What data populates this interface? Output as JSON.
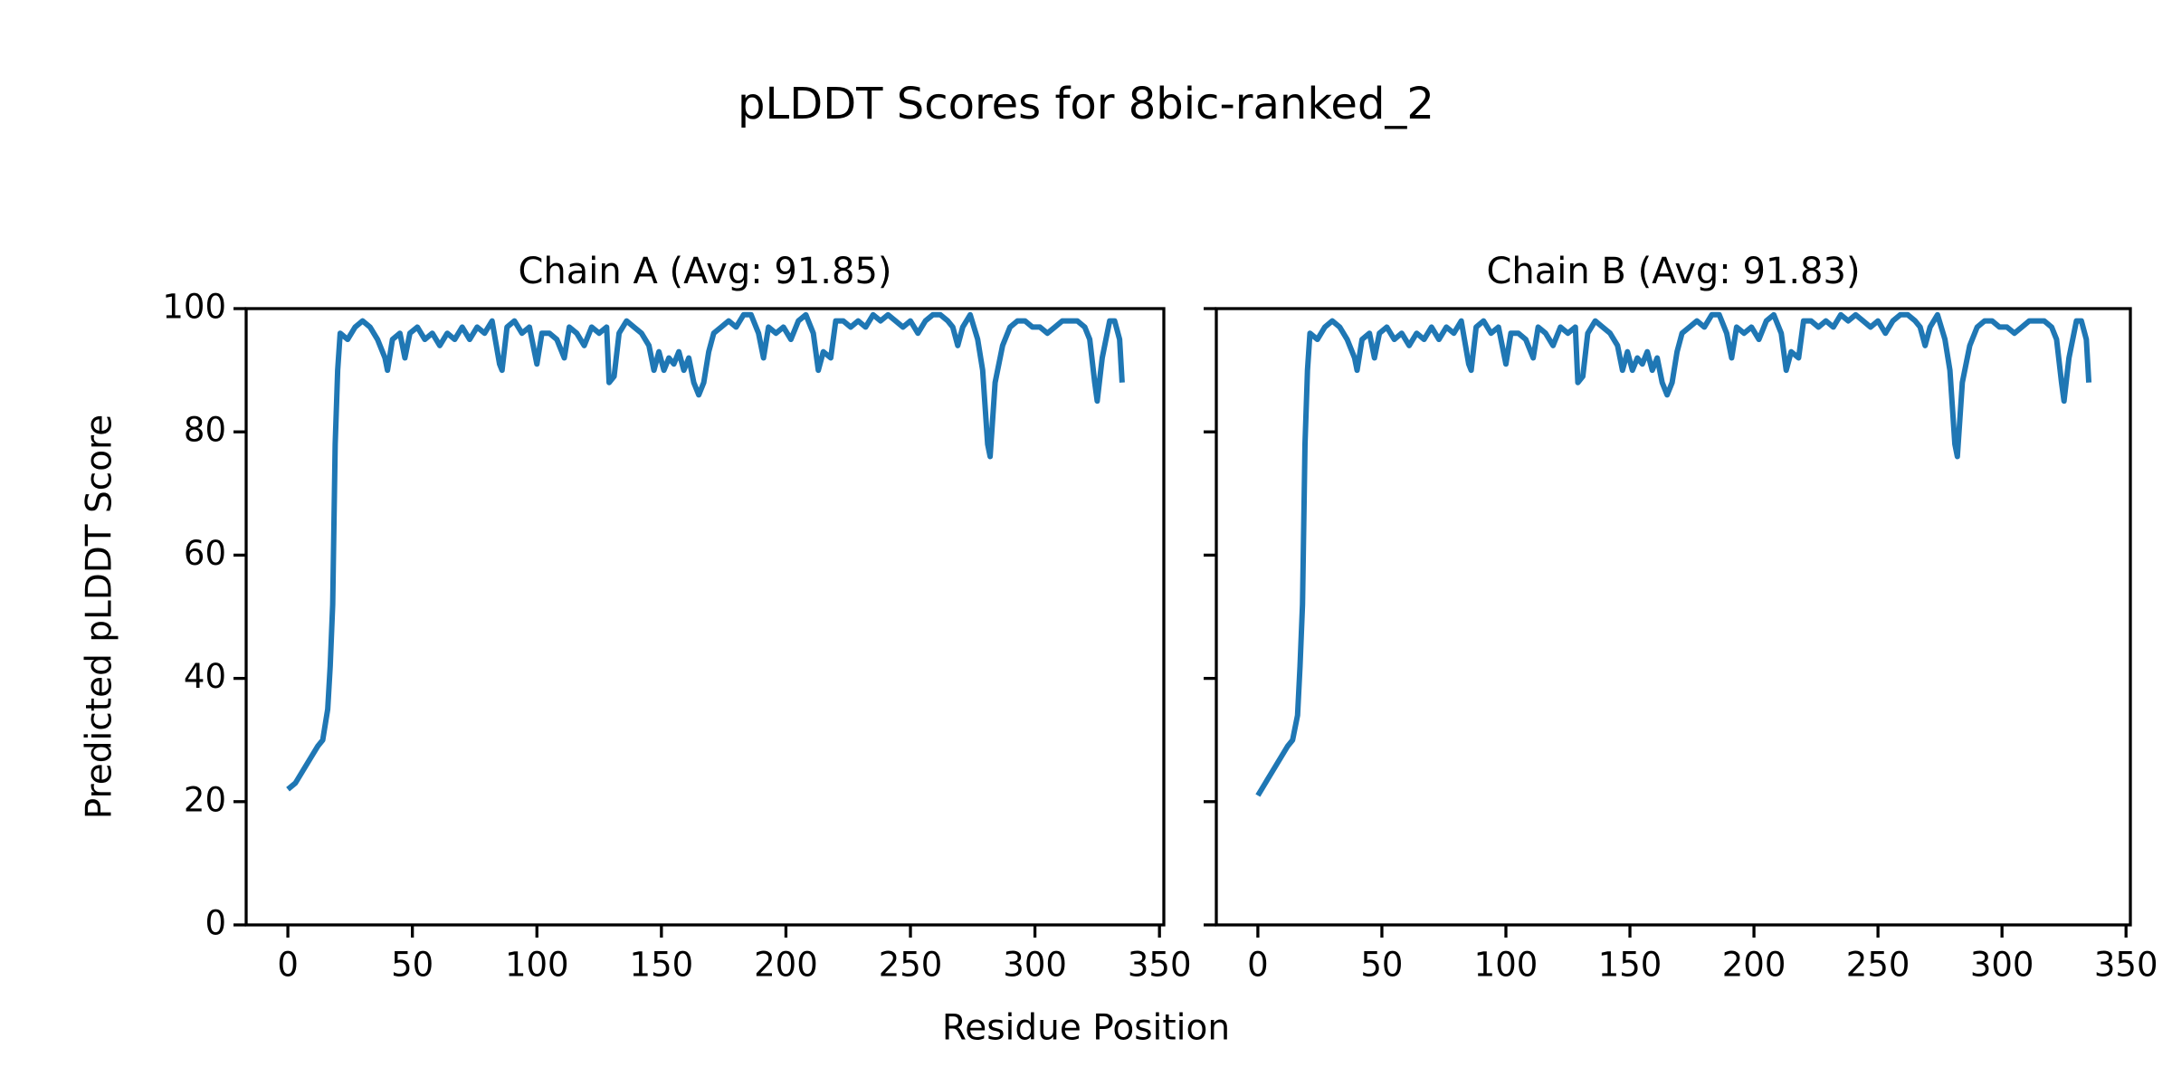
{
  "title": "pLDDT Scores for 8bic-ranked_2",
  "xlabel": "Residue Position",
  "chart_data": [
    {
      "type": "line",
      "title": "Chain A (Avg: 91.85)",
      "ylabel": "Predicted pLDDT Score",
      "xlim": [
        -16.75,
        351.75
      ],
      "ylim": [
        0,
        100
      ],
      "xticks": [
        0,
        50,
        100,
        150,
        200,
        250,
        300,
        350
      ],
      "yticks": [
        0,
        20,
        40,
        60,
        80,
        100
      ],
      "ytick_labels": true,
      "series": [
        {
          "color": "#1f77b4",
          "x": [
            0,
            3,
            6,
            9,
            12,
            14,
            16,
            17,
            18,
            19,
            20,
            21,
            24,
            27,
            30,
            33,
            36,
            39,
            40,
            42,
            45,
            47,
            49,
            52,
            55,
            58,
            61,
            64,
            67,
            70,
            73,
            76,
            79,
            82,
            85,
            86,
            88,
            91,
            94,
            97,
            100,
            102,
            105,
            108,
            111,
            113,
            116,
            119,
            122,
            125,
            128,
            129,
            131,
            133,
            136,
            139,
            142,
            145,
            147,
            149,
            151,
            153,
            155,
            157,
            159,
            161,
            163,
            165,
            167,
            169,
            171,
            174,
            177,
            180,
            183,
            186,
            189,
            191,
            193,
            196,
            199,
            202,
            205,
            208,
            211,
            213,
            215,
            218,
            220,
            223,
            226,
            229,
            232,
            235,
            238,
            241,
            244,
            247,
            250,
            253,
            256,
            259,
            262,
            265,
            267,
            269,
            271,
            274,
            277,
            279,
            281,
            282,
            284,
            287,
            290,
            293,
            296,
            299,
            302,
            305,
            308,
            311,
            314,
            317,
            320,
            322,
            324,
            325,
            327,
            330,
            332,
            334,
            335
          ],
          "values": [
            22,
            23,
            25,
            27,
            29,
            30,
            35,
            42,
            52,
            78,
            90,
            96,
            95,
            97,
            98,
            97,
            95,
            92,
            90,
            95,
            96,
            92,
            96,
            97,
            95,
            96,
            94,
            96,
            95,
            97,
            95,
            97,
            96,
            98,
            91,
            90,
            97,
            98,
            96,
            97,
            91,
            96,
            96,
            95,
            92,
            97,
            96,
            94,
            97,
            96,
            97,
            88,
            89,
            96,
            98,
            97,
            96,
            94,
            90,
            93,
            90,
            92,
            91,
            93,
            90,
            92,
            88,
            86,
            88,
            93,
            96,
            97,
            98,
            97,
            99,
            99,
            96,
            92,
            97,
            96,
            97,
            95,
            98,
            99,
            96,
            90,
            93,
            92,
            98,
            98,
            97,
            98,
            97,
            99,
            98,
            99,
            98,
            97,
            98,
            96,
            98,
            99,
            99,
            98,
            97,
            94,
            97,
            99,
            95,
            90,
            78,
            76,
            88,
            94,
            97,
            98,
            98,
            97,
            97,
            96,
            97,
            98,
            98,
            98,
            97,
            95,
            88,
            85,
            92,
            98,
            98,
            95,
            88
          ]
        }
      ]
    },
    {
      "type": "line",
      "title": "Chain B (Avg: 91.83)",
      "xlim": [
        -16.75,
        351.75
      ],
      "ylim": [
        0,
        100
      ],
      "xticks": [
        0,
        50,
        100,
        150,
        200,
        250,
        300,
        350
      ],
      "yticks": [
        0,
        20,
        40,
        60,
        80,
        100
      ],
      "ytick_labels": false,
      "series": [
        {
          "color": "#1f77b4",
          "x": [
            0,
            3,
            6,
            9,
            12,
            14,
            16,
            17,
            18,
            19,
            20,
            21,
            24,
            27,
            30,
            33,
            36,
            39,
            40,
            42,
            45,
            47,
            49,
            52,
            55,
            58,
            61,
            64,
            67,
            70,
            73,
            76,
            79,
            82,
            85,
            86,
            88,
            91,
            94,
            97,
            100,
            102,
            105,
            108,
            111,
            113,
            116,
            119,
            122,
            125,
            128,
            129,
            131,
            133,
            136,
            139,
            142,
            145,
            147,
            149,
            151,
            153,
            155,
            157,
            159,
            161,
            163,
            165,
            167,
            169,
            171,
            174,
            177,
            180,
            183,
            186,
            189,
            191,
            193,
            196,
            199,
            202,
            205,
            208,
            211,
            213,
            215,
            218,
            220,
            223,
            226,
            229,
            232,
            235,
            238,
            241,
            244,
            247,
            250,
            253,
            256,
            259,
            262,
            265,
            267,
            269,
            271,
            274,
            277,
            279,
            281,
            282,
            284,
            287,
            290,
            293,
            296,
            299,
            302,
            305,
            308,
            311,
            314,
            317,
            320,
            322,
            324,
            325,
            327,
            330,
            332,
            334,
            335
          ],
          "values": [
            21,
            23,
            25,
            27,
            29,
            30,
            34,
            42,
            52,
            78,
            90,
            96,
            95,
            97,
            98,
            97,
            95,
            92,
            90,
            95,
            96,
            92,
            96,
            97,
            95,
            96,
            94,
            96,
            95,
            97,
            95,
            97,
            96,
            98,
            91,
            90,
            97,
            98,
            96,
            97,
            91,
            96,
            96,
            95,
            92,
            97,
            96,
            94,
            97,
            96,
            97,
            88,
            89,
            96,
            98,
            97,
            96,
            94,
            90,
            93,
            90,
            92,
            91,
            93,
            90,
            92,
            88,
            86,
            88,
            93,
            96,
            97,
            98,
            97,
            99,
            99,
            96,
            92,
            97,
            96,
            97,
            95,
            98,
            99,
            96,
            90,
            93,
            92,
            98,
            98,
            97,
            98,
            97,
            99,
            98,
            99,
            98,
            97,
            98,
            96,
            98,
            99,
            99,
            98,
            97,
            94,
            97,
            99,
            95,
            90,
            78,
            76,
            88,
            94,
            97,
            98,
            98,
            97,
            97,
            96,
            97,
            98,
            98,
            98,
            97,
            95,
            88,
            85,
            92,
            98,
            98,
            95,
            88
          ]
        }
      ]
    }
  ]
}
